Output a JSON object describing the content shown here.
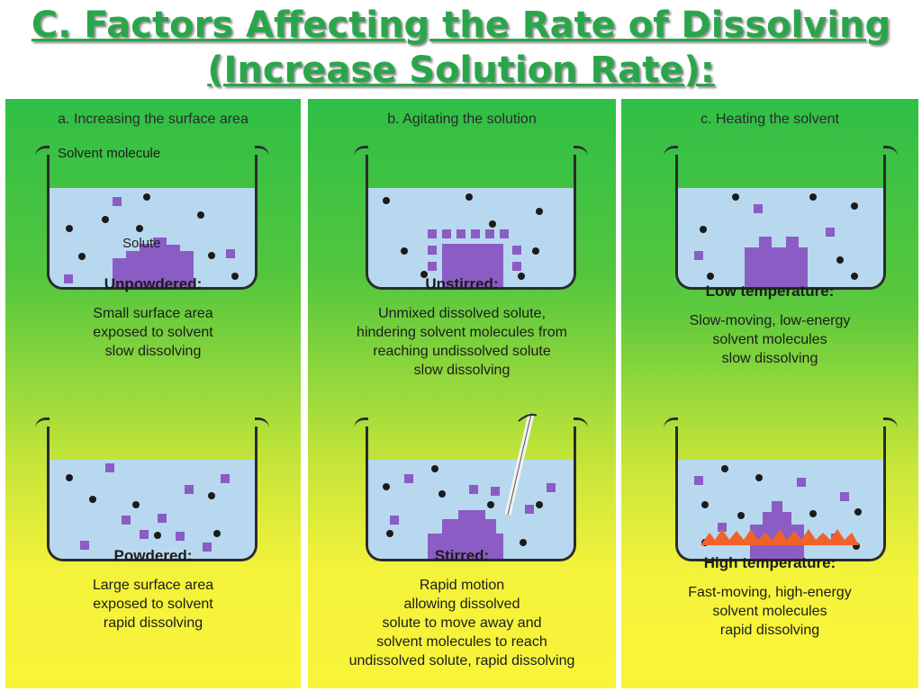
{
  "title": {
    "line1": "C. Factors Affecting the Rate of Dissolving",
    "line2": "(Increase Solution Rate):"
  },
  "colors": {
    "title": "#2aa64a",
    "water": "#b8d8ef",
    "solute": "#8a5cc4",
    "molecule": "#1b1b1b",
    "panel_top": "#2fbf46",
    "panel_bottom": "#f8f43a",
    "flame": "#f0622a"
  },
  "panels": [
    {
      "heading": "a. Increasing the surface area",
      "callouts": {
        "solvent": "Solvent molecule",
        "solute": "Solute"
      },
      "top": {
        "label": "Unpowdered:",
        "lines": [
          "Small surface area",
          "exposed to solvent",
          "slow dissolving"
        ]
      },
      "bottom": {
        "label": "Powdered:",
        "lines": [
          "Large surface area",
          "exposed to solvent",
          "rapid dissolving"
        ]
      }
    },
    {
      "heading": "b. Agitating the solution",
      "top": {
        "label": "Unstirred:",
        "lines": [
          "Unmixed dissolved solute,",
          "hindering solvent molecules from",
          "reaching undissolved solute",
          "slow dissolving"
        ]
      },
      "bottom": {
        "label": "Stirred:",
        "lines": [
          "Rapid motion",
          "allowing dissolved",
          "solute to move away and",
          "solvent molecules to reach",
          "undissolved solute, rapid dissolving"
        ]
      }
    },
    {
      "heading": "c. Heating the solvent",
      "top": {
        "label": "Low temperature:",
        "lines": [
          "Slow-moving, low-energy",
          "solvent molecules",
          "slow dissolving"
        ]
      },
      "bottom": {
        "label": "High temperature:",
        "lines": [
          "Fast-moving, high-energy",
          "solvent molecules",
          "rapid dissolving"
        ]
      }
    }
  ]
}
